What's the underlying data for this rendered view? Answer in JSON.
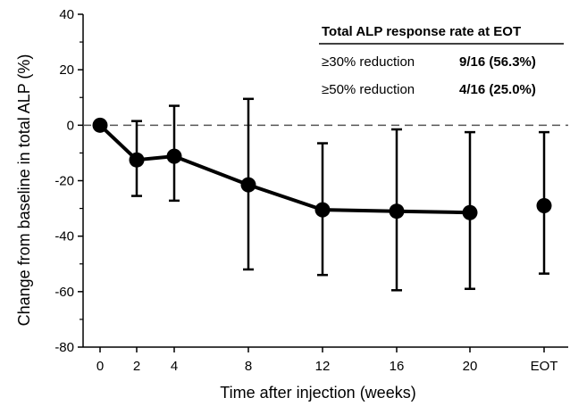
{
  "chart_data": {
    "type": "line",
    "title": "",
    "xlabel": "Time after injection (weeks)",
    "ylabel": "Change from baseline in total ALP (%)",
    "ylim": [
      -80,
      40
    ],
    "yticks": [
      -80,
      -60,
      -40,
      -20,
      0,
      20,
      40
    ],
    "x_tick_labels": [
      "0",
      "2",
      "4",
      "8",
      "12",
      "16",
      "20",
      "EOT"
    ],
    "reference_line": {
      "y": 0,
      "style": "dashed"
    },
    "series": [
      {
        "points": [
          {
            "x": "0",
            "y": 0,
            "err_low": 0,
            "err_high": 0
          },
          {
            "x": "2",
            "y": -12.5,
            "err_low": -25.5,
            "err_high": 1.5
          },
          {
            "x": "4",
            "y": -11.2,
            "err_low": -27.2,
            "err_high": 7.0
          },
          {
            "x": "8",
            "y": -21.5,
            "err_low": -52.0,
            "err_high": 9.5
          },
          {
            "x": "12",
            "y": -30.5,
            "err_low": -54.0,
            "err_high": -6.5
          },
          {
            "x": "16",
            "y": -31.0,
            "err_low": -59.5,
            "err_high": -1.5
          },
          {
            "x": "20",
            "y": -31.5,
            "err_low": -59.0,
            "err_high": -2.5
          }
        ]
      },
      {
        "points": [
          {
            "x": "EOT",
            "y": -29.0,
            "err_low": -53.5,
            "err_high": -2.5
          }
        ]
      }
    ],
    "colors": {
      "line": "#000000",
      "marker": "#000000"
    }
  },
  "table": {
    "title": "Total ALP response rate at EOT",
    "rows": [
      {
        "label": "≥30% reduction",
        "value": "9/16 (56.3%)"
      },
      {
        "label": "≥50% reduction",
        "value": "4/16 (25.0%)"
      }
    ]
  }
}
